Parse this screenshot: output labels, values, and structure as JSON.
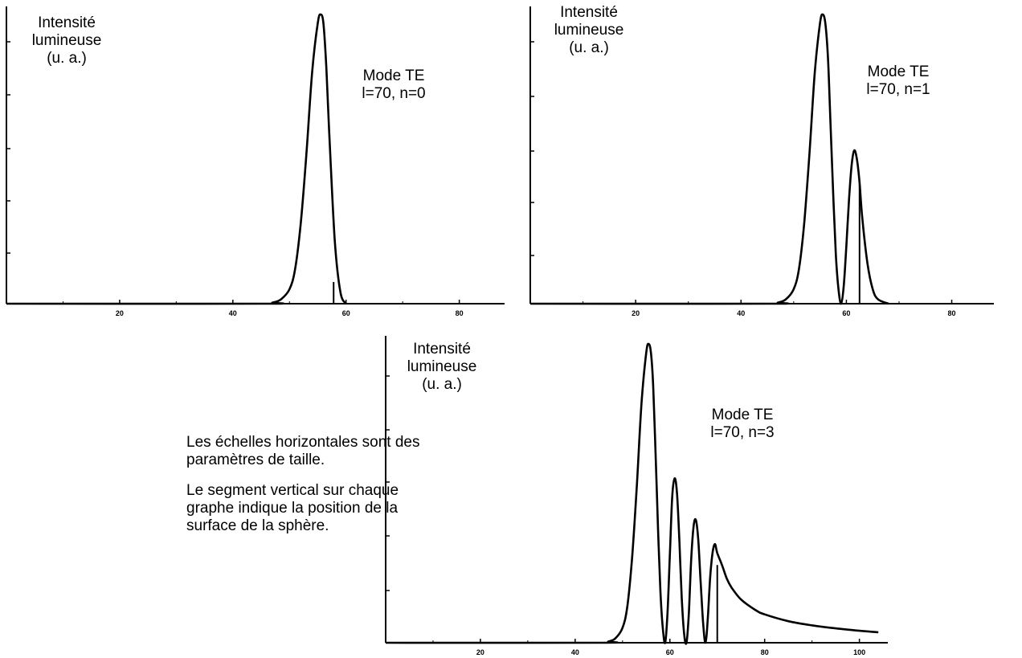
{
  "chart_data": [
    {
      "type": "line",
      "ylabel": [
        "Intensité",
        "lumineuse",
        "(u. a.)"
      ],
      "annotation": [
        "Mode TE",
        "l=70, n=0"
      ],
      "x_ticks": [
        "20",
        "40",
        "60",
        "80"
      ],
      "xlim": [
        0,
        88
      ],
      "ylim": [
        0,
        1
      ],
      "surface_x": 57.8,
      "surface_y": 0.075,
      "series": [
        {
          "x": [
            0,
            45,
            47,
            48.5,
            50,
            51,
            52,
            53,
            54,
            55,
            55.5,
            56,
            56.5,
            57,
            58,
            59,
            60
          ],
          "y": [
            0,
            0,
            0.004,
            0.015,
            0.05,
            0.12,
            0.28,
            0.52,
            0.8,
            0.97,
            1.0,
            0.97,
            0.82,
            0.6,
            0.22,
            0.04,
            0
          ]
        }
      ]
    },
    {
      "type": "line",
      "ylabel": [
        "Intensité",
        "lumineuse",
        "(u. a.)"
      ],
      "annotation": [
        "Mode TE",
        "l=70, n=1"
      ],
      "x_ticks": [
        "20",
        "40",
        "60",
        "80"
      ],
      "xlim": [
        0,
        88
      ],
      "ylim": [
        0,
        1
      ],
      "surface_x": 62.5,
      "surface_y": 0.42,
      "series": [
        {
          "x": [
            0,
            45,
            47,
            48.5,
            50,
            51,
            52,
            53,
            54,
            55,
            55.5,
            56,
            56.5,
            57,
            57.5,
            58,
            58.5,
            59,
            59.5,
            60,
            60.5,
            61,
            61.5,
            62,
            62.5,
            63,
            64,
            65,
            66,
            68
          ],
          "y": [
            0,
            0,
            0.004,
            0.015,
            0.05,
            0.12,
            0.28,
            0.52,
            0.8,
            0.97,
            1.0,
            0.97,
            0.85,
            0.62,
            0.38,
            0.17,
            0.05,
            0,
            0.06,
            0.2,
            0.36,
            0.48,
            0.53,
            0.5,
            0.42,
            0.3,
            0.14,
            0.05,
            0.015,
            0
          ]
        }
      ]
    },
    {
      "type": "line",
      "ylabel": [
        "Intensité",
        "lumineuse",
        "(u. a.)"
      ],
      "annotation": [
        "Mode TE",
        "l=70, n=3"
      ],
      "x_ticks": [
        "20",
        "40",
        "60",
        "80",
        "100"
      ],
      "xlim": [
        0,
        106
      ],
      "ylim": [
        0,
        1
      ],
      "surface_x": 70,
      "surface_y": 0.26,
      "series": [
        {
          "x": [
            0,
            45,
            47,
            48.5,
            50,
            51,
            52,
            53,
            54,
            55,
            55.5,
            56,
            56.5,
            57,
            57.5,
            58,
            58.5,
            59,
            59.5,
            60,
            60.5,
            61,
            61.5,
            62,
            62.5,
            63,
            63.5,
            64,
            64.5,
            65,
            65.5,
            66,
            66.5,
            67,
            67.5,
            68,
            68.5,
            69,
            69.5,
            70,
            71,
            72,
            73,
            75,
            78,
            80,
            85,
            90,
            95,
            100,
            104
          ],
          "y": [
            0,
            0,
            0.004,
            0.015,
            0.05,
            0.12,
            0.28,
            0.52,
            0.8,
            0.97,
            1.0,
            0.97,
            0.85,
            0.62,
            0.38,
            0.17,
            0.05,
            0,
            0.1,
            0.3,
            0.49,
            0.55,
            0.5,
            0.34,
            0.15,
            0.03,
            0,
            0.1,
            0.28,
            0.39,
            0.41,
            0.34,
            0.2,
            0.07,
            0,
            0.08,
            0.22,
            0.3,
            0.33,
            0.3,
            0.26,
            0.215,
            0.185,
            0.145,
            0.11,
            0.095,
            0.072,
            0.058,
            0.048,
            0.04,
            0.035
          ]
        }
      ]
    }
  ],
  "notes": [
    "Les échelles horizontales sont des",
    "paramètres de taille.",
    "Le segment vertical sur chaque",
    "graphe indique la position de la",
    "surface de la sphère."
  ]
}
